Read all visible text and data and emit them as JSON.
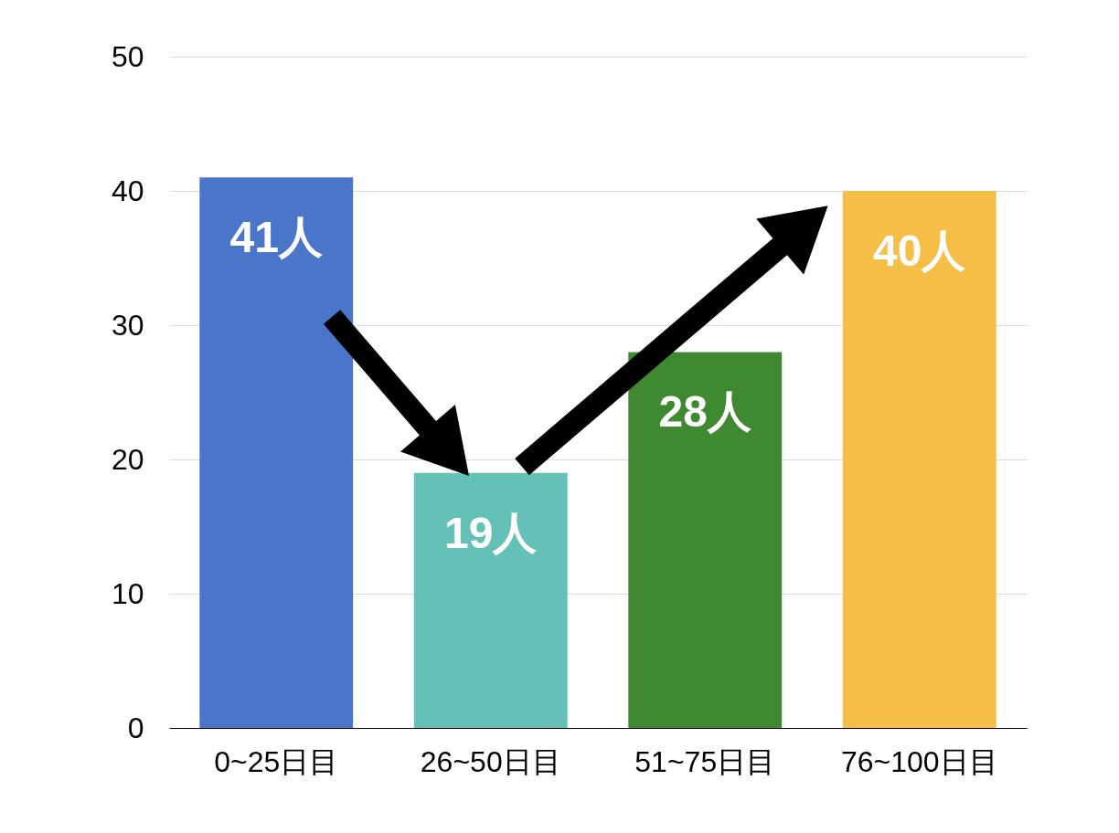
{
  "chart_data": {
    "type": "bar",
    "categories": [
      "0~25日目",
      "26~50日目",
      "51~75日目",
      "76~100日目"
    ],
    "values": [
      41,
      19,
      28,
      40
    ],
    "colors": [
      "#4a76c9",
      "#63c1b8",
      "#3f8930",
      "#f5be46"
    ],
    "value_labels": [
      "41人",
      "19人",
      "28人",
      "40人"
    ],
    "ylim": [
      0,
      50
    ],
    "yticks": [
      0,
      10,
      20,
      30,
      40,
      50
    ],
    "grid": "y"
  }
}
